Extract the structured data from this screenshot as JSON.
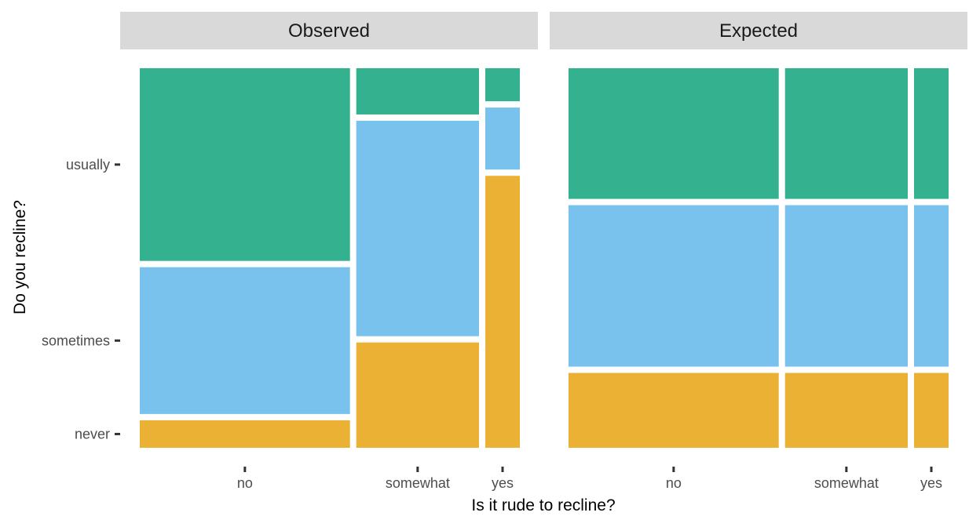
{
  "chart_data": {
    "type": "mosaic",
    "xlabel": "Is it rude to recline?",
    "ylabel": "Do you recline?",
    "x_categories": [
      "no",
      "somewhat",
      "yes"
    ],
    "y_categories": [
      "never",
      "sometimes",
      "usually"
    ],
    "colors": {
      "never": "#EBB134",
      "sometimes": "#78C2ED",
      "usually": "#34B28F"
    },
    "legend": "none",
    "grid": false,
    "panels": [
      {
        "name": "Observed",
        "columns": [
          {
            "category": "no",
            "width": 0.572,
            "heights": {
              "never": 0.075,
              "sometimes": 0.4,
              "usually": 0.525
            }
          },
          {
            "category": "somewhat",
            "width": 0.334,
            "heights": {
              "never": 0.287,
              "sometimes": 0.587,
              "usually": 0.126
            }
          },
          {
            "category": "yes",
            "width": 0.094,
            "heights": {
              "never": 0.741,
              "sometimes": 0.169,
              "usually": 0.09
            }
          }
        ]
      },
      {
        "name": "Expected",
        "columns": [
          {
            "category": "no",
            "width": 0.572,
            "heights": {
              "never": 0.204,
              "sometimes": 0.44,
              "usually": 0.356
            }
          },
          {
            "category": "somewhat",
            "width": 0.334,
            "heights": {
              "never": 0.204,
              "sometimes": 0.44,
              "usually": 0.356
            }
          },
          {
            "category": "yes",
            "width": 0.094,
            "heights": {
              "never": 0.204,
              "sometimes": 0.44,
              "usually": 0.356
            }
          }
        ]
      }
    ]
  }
}
